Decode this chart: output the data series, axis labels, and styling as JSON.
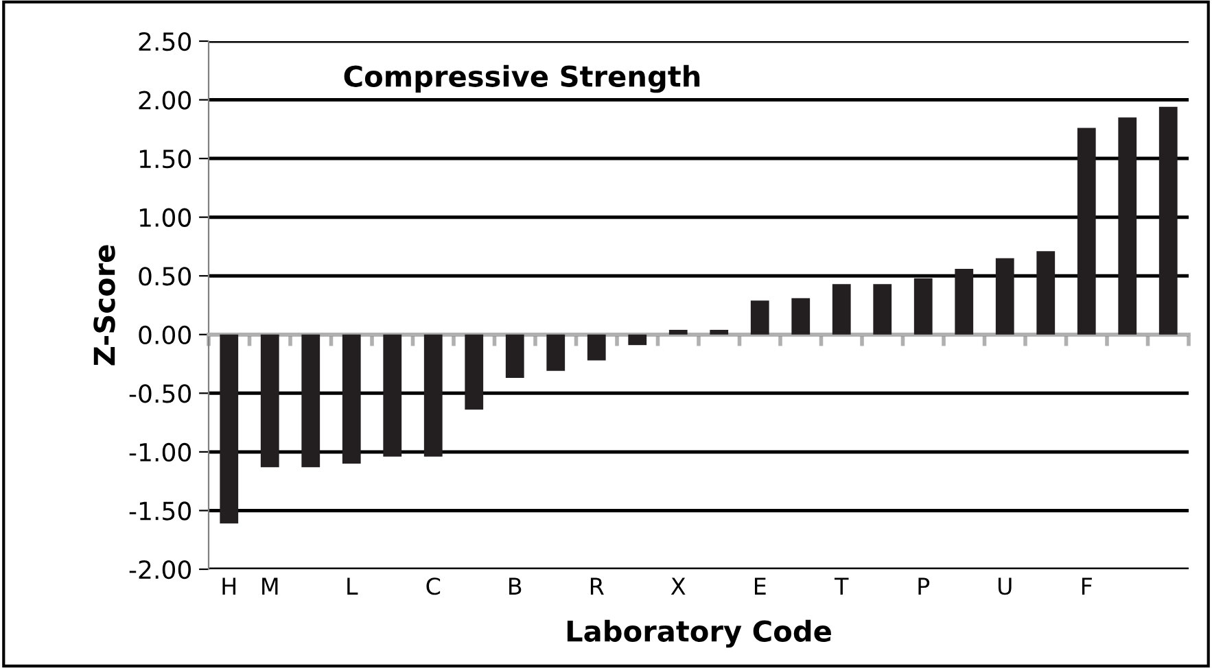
{
  "chart_data": {
    "type": "bar",
    "title": "Compressive Strength",
    "xlabel": "Laboratory Code",
    "ylabel": "Z-Score",
    "categories": [
      "H",
      "M",
      null,
      "L",
      null,
      "C",
      null,
      "B",
      null,
      "R",
      null,
      "X",
      null,
      "E",
      null,
      "T",
      null,
      "P",
      null,
      "U",
      null,
      "F",
      null,
      null
    ],
    "values": [
      -1.61,
      -1.13,
      -1.13,
      -1.1,
      -1.04,
      -1.04,
      -0.64,
      -0.37,
      -0.31,
      -0.22,
      -0.09,
      0.04,
      0.04,
      0.29,
      0.31,
      0.43,
      0.43,
      0.48,
      0.56,
      0.65,
      0.71,
      1.76,
      1.85,
      1.94
    ],
    "color": "#231f20",
    "ylim": [
      -2.0,
      2.5
    ],
    "yticks": [
      {
        "value": -2.0,
        "label": "-2.00"
      },
      {
        "value": -1.5,
        "label": "-1.50"
      },
      {
        "value": -1.0,
        "label": "-1.00"
      },
      {
        "value": -0.5,
        "label": "-0.50"
      },
      {
        "value": 0.0,
        "label": "0.00"
      },
      {
        "value": 0.5,
        "label": "0.50"
      },
      {
        "value": 1.0,
        "label": "1.00"
      },
      {
        "value": 1.5,
        "label": "1.50"
      },
      {
        "value": 2.0,
        "label": "2.00"
      },
      {
        "value": 2.5,
        "label": "2.50"
      }
    ],
    "grid": "y"
  }
}
